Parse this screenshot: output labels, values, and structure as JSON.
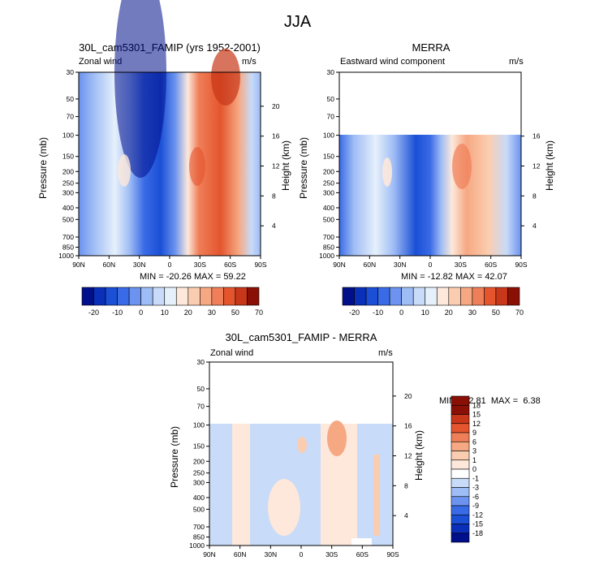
{
  "title": "JJA",
  "chart_data": [
    {
      "type": "heatmap",
      "title": "30L_cam5301_FAMIP (yrs 1952-2001)",
      "left_label": "Zonal wind",
      "right_label": "m/s",
      "xlabel": "",
      "ylabel": "Pressure (mb)",
      "ylabel_right": "Height (km)",
      "x_ticks": [
        "90N",
        "60N",
        "30N",
        "0",
        "30S",
        "60S",
        "90S"
      ],
      "y_ticks": [
        "30",
        "50",
        "70",
        "100",
        "150",
        "200",
        "250",
        "300",
        "400",
        "500",
        "700",
        "850",
        "1000"
      ],
      "y_ticks_right": [
        "20",
        "16",
        "12",
        "8",
        "4"
      ],
      "stats": "MIN = -20.26  MAX = 59.22",
      "min": -20.26,
      "max": 59.22,
      "colorbar_labels": [
        "-20",
        "-10",
        "0",
        "10",
        "20",
        "30",
        "50",
        "70"
      ]
    },
    {
      "type": "heatmap",
      "title": "MERRA",
      "left_label": "Eastward wind component",
      "right_label": "m/s",
      "xlabel": "",
      "ylabel": "Pressure (mb)",
      "ylabel_right": "Height (km)",
      "x_ticks": [
        "90N",
        "60N",
        "30N",
        "0",
        "30S",
        "60S",
        "90S"
      ],
      "y_ticks": [
        "30",
        "50",
        "70",
        "100",
        "150",
        "200",
        "250",
        "300",
        "400",
        "500",
        "700",
        "850",
        "1000"
      ],
      "y_ticks_right": [
        "16",
        "12",
        "8",
        "4"
      ],
      "stats": "MIN = -12.82  MAX = 42.07",
      "min": -12.82,
      "max": 42.07,
      "colorbar_labels": [
        "-20",
        "-10",
        "0",
        "10",
        "20",
        "30",
        "50",
        "70"
      ]
    },
    {
      "type": "heatmap",
      "title": "30L_cam5301_FAMIP - MERRA",
      "left_label": "Zonal wind",
      "right_label": "m/s",
      "xlabel": "",
      "ylabel": "Pressure (mb)",
      "ylabel_right": "Height (km)",
      "x_ticks": [
        "90N",
        "60N",
        "30N",
        "0",
        "30S",
        "60S",
        "90S"
      ],
      "y_ticks": [
        "30",
        "50",
        "70",
        "100",
        "150",
        "200",
        "250",
        "300",
        "400",
        "500",
        "700",
        "850",
        "1000"
      ],
      "y_ticks_right": [
        "20",
        "16",
        "12",
        "8",
        "4"
      ],
      "stats": "MIN = -2.81  MAX =  6.38",
      "min": -2.81,
      "max": 6.38,
      "colorbar_labels": [
        "18",
        "15",
        "12",
        "9",
        "6",
        "3",
        "1",
        "0",
        "-1",
        "-3",
        "-6",
        "-9",
        "-12",
        "-15",
        "-18"
      ]
    }
  ],
  "colors": {
    "scale_main": [
      "#000f8a",
      "#0a2fb8",
      "#1a4fd6",
      "#3a6be6",
      "#6b93ef",
      "#9ebcf5",
      "#c8dbf8",
      "#e6f0fb",
      "#fde8db",
      "#fbcdb0",
      "#f6a882",
      "#ef7f58",
      "#e4552e",
      "#c8371a",
      "#8a1005"
    ],
    "scale_diff": [
      "#8a1005",
      "#c8371a",
      "#e4552e",
      "#ef7f58",
      "#f6a882",
      "#fbcdb0",
      "#fde8db",
      "#ffffff",
      "#c8dbf8",
      "#9ebcf5",
      "#6b93ef",
      "#3a6be6",
      "#1a4fd6",
      "#0a2fb8",
      "#000f8a"
    ]
  }
}
